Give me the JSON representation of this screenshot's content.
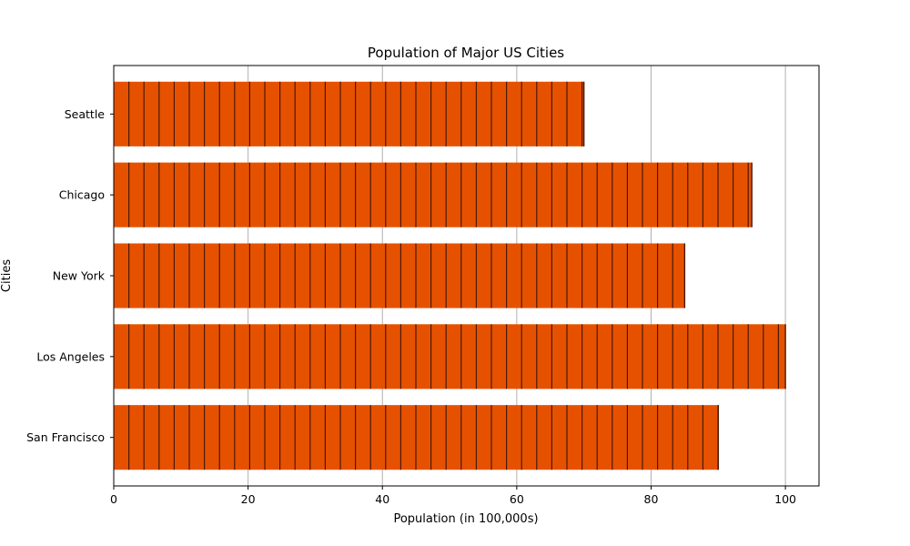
{
  "chart_data": {
    "type": "bar",
    "orientation": "horizontal",
    "title": "Population of Major US Cities",
    "xlabel": "Population (in 100,000s)",
    "ylabel": "Cities",
    "categories": [
      "San Francisco",
      "Los Angeles",
      "New York",
      "Chicago",
      "Seattle"
    ],
    "values": [
      90,
      100,
      85,
      95,
      70
    ],
    "xlim": [
      0,
      105
    ],
    "xticks": [
      0,
      20,
      40,
      60,
      80,
      100
    ],
    "grid": "x",
    "bar_color": "#e65100",
    "hatch_color": "#4a1a08"
  }
}
